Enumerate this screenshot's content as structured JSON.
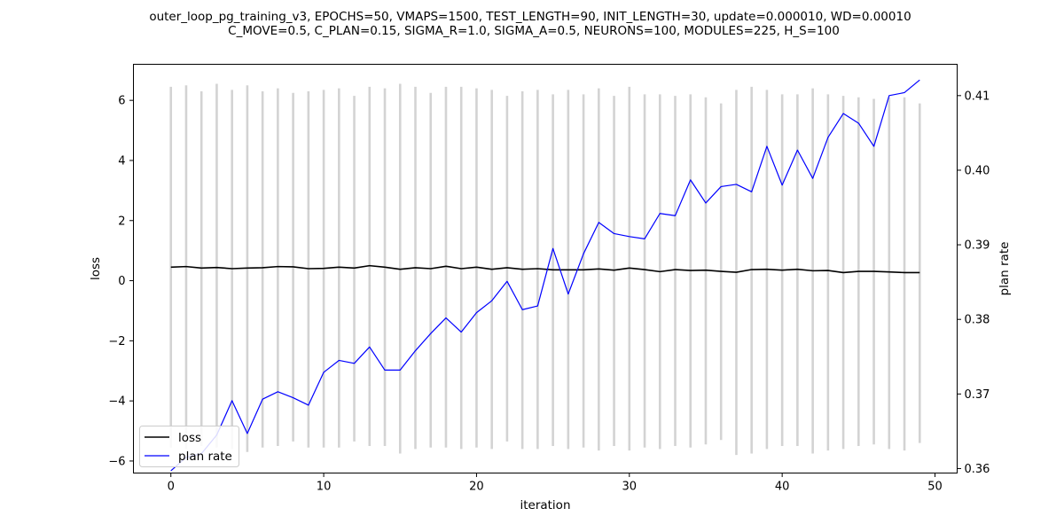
{
  "chart_data": {
    "type": "line",
    "title_lines": [
      "outer_loop_pg_training_v3, EPOCHS=50, VMAPS=1500, TEST_LENGTH=90, INIT_LENGTH=30, update=0.000010, WD=0.00010",
      "C_MOVE=0.5, C_PLAN=0.15, SIGMA_R=1.0, SIGMA_A=0.5, NEURONS=100, MODULES=225, H_S=100"
    ],
    "xlabel": "iteration",
    "ylabel": "loss",
    "y2label": "plan rate",
    "xlim": [
      -2.45,
      51.45
    ],
    "ylim": [
      -6.4,
      7.2
    ],
    "y2lim": [
      0.3594,
      0.4142
    ],
    "xticks": [
      0,
      10,
      20,
      30,
      40,
      50
    ],
    "yticks": [
      -6,
      -4,
      -2,
      0,
      2,
      4,
      6
    ],
    "y2ticks": [
      0.36,
      0.37,
      0.38,
      0.39,
      0.4,
      0.41
    ],
    "ytick_labels": [
      "−6",
      "−4",
      "−2",
      "0",
      "2",
      "4",
      "6"
    ],
    "y2tick_labels": [
      "0.36",
      "0.37",
      "0.38",
      "0.39",
      "0.40",
      "0.41"
    ],
    "xtick_labels": [
      "0",
      "10",
      "20",
      "30",
      "40",
      "50"
    ],
    "grid": false,
    "legend_position": "lower-left",
    "series": [
      {
        "name": "loss",
        "axis": "left",
        "color": "#000000",
        "x": [
          0,
          1,
          2,
          3,
          4,
          5,
          6,
          7,
          8,
          9,
          10,
          11,
          12,
          13,
          14,
          15,
          16,
          17,
          18,
          19,
          20,
          21,
          22,
          23,
          24,
          25,
          26,
          27,
          28,
          29,
          30,
          31,
          32,
          33,
          34,
          35,
          36,
          37,
          38,
          39,
          40,
          41,
          42,
          43,
          44,
          45,
          46,
          47,
          48,
          49
        ],
        "values": [
          0.45,
          0.47,
          0.42,
          0.44,
          0.4,
          0.42,
          0.43,
          0.47,
          0.46,
          0.4,
          0.41,
          0.45,
          0.42,
          0.5,
          0.45,
          0.38,
          0.43,
          0.4,
          0.48,
          0.4,
          0.45,
          0.38,
          0.43,
          0.38,
          0.4,
          0.36,
          0.36,
          0.36,
          0.39,
          0.35,
          0.42,
          0.37,
          0.3,
          0.37,
          0.34,
          0.35,
          0.31,
          0.28,
          0.37,
          0.38,
          0.35,
          0.38,
          0.33,
          0.34,
          0.27,
          0.31,
          0.31,
          0.29,
          0.27,
          0.27
        ]
      },
      {
        "name": "plan rate",
        "axis": "right",
        "color": "#0000ff",
        "x": [
          0,
          1,
          2,
          3,
          4,
          5,
          6,
          7,
          8,
          9,
          10,
          11,
          12,
          13,
          14,
          15,
          16,
          17,
          18,
          19,
          20,
          21,
          22,
          23,
          24,
          25,
          26,
          27,
          28,
          29,
          30,
          31,
          32,
          33,
          34,
          35,
          36,
          37,
          38,
          39,
          40,
          41,
          42,
          43,
          44,
          45,
          46,
          47,
          48,
          49
        ],
        "values": [
          0.3597,
          0.3615,
          0.362,
          0.3645,
          0.3691,
          0.3647,
          0.3693,
          0.3703,
          0.3695,
          0.3685,
          0.3729,
          0.3745,
          0.3741,
          0.3763,
          0.3732,
          0.3732,
          0.3758,
          0.3781,
          0.3802,
          0.3783,
          0.3809,
          0.3825,
          0.3851,
          0.3813,
          0.3818,
          0.3895,
          0.3834,
          0.3888,
          0.393,
          0.3915,
          0.3911,
          0.3908,
          0.3942,
          0.3939,
          0.3987,
          0.3956,
          0.3978,
          0.3981,
          0.3971,
          0.4032,
          0.398,
          0.4027,
          0.3989,
          0.4044,
          0.4076,
          0.4063,
          0.4032,
          0.41,
          0.4104,
          0.4121
        ]
      }
    ],
    "error_bars": {
      "axis": "left",
      "color": "#d3d3d3",
      "x": [
        0,
        1,
        2,
        3,
        4,
        5,
        6,
        7,
        8,
        9,
        10,
        11,
        12,
        13,
        14,
        15,
        16,
        17,
        18,
        19,
        20,
        21,
        22,
        23,
        24,
        25,
        26,
        27,
        28,
        29,
        30,
        31,
        32,
        33,
        34,
        35,
        36,
        37,
        38,
        39,
        40,
        41,
        42,
        43,
        44,
        45,
        46,
        47,
        48,
        49
      ],
      "lower": [
        -5.55,
        -5.6,
        -5.5,
        -5.55,
        -5.6,
        -5.7,
        -5.55,
        -5.5,
        -5.35,
        -5.55,
        -5.55,
        -5.55,
        -5.35,
        -5.5,
        -5.5,
        -5.75,
        -5.6,
        -5.55,
        -5.55,
        -5.6,
        -5.55,
        -5.6,
        -5.35,
        -5.6,
        -5.6,
        -5.5,
        -5.6,
        -5.55,
        -5.65,
        -5.5,
        -5.65,
        -5.55,
        -5.6,
        -5.5,
        -5.55,
        -5.45,
        -5.3,
        -5.8,
        -5.75,
        -5.6,
        -5.5,
        -5.5,
        -5.75,
        -5.65,
        -5.6,
        -5.5,
        -5.45,
        -5.6,
        -5.65,
        -5.4
      ],
      "upper": [
        6.45,
        6.5,
        6.3,
        6.55,
        6.35,
        6.5,
        6.3,
        6.4,
        6.25,
        6.3,
        6.35,
        6.4,
        6.15,
        6.45,
        6.4,
        6.55,
        6.45,
        6.25,
        6.45,
        6.45,
        6.4,
        6.35,
        6.15,
        6.3,
        6.35,
        6.2,
        6.35,
        6.2,
        6.4,
        6.15,
        6.45,
        6.2,
        6.2,
        6.15,
        6.2,
        6.1,
        5.9,
        6.35,
        6.45,
        6.35,
        6.2,
        6.2,
        6.4,
        6.2,
        6.15,
        6.1,
        6.05,
        6.1,
        6.1,
        5.9
      ]
    }
  }
}
